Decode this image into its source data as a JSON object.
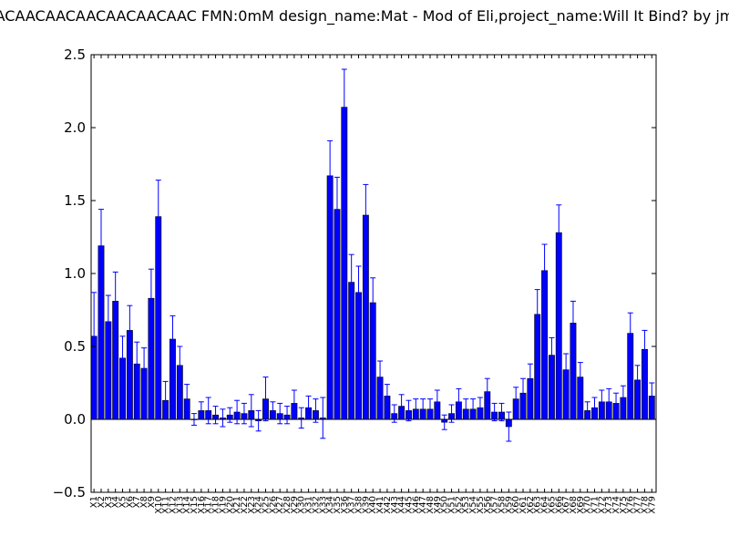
{
  "chart_data": {
    "type": "bar",
    "title": "ACAACAACAACAACAACAAC  FMN:0mM  design_name:Mat - Mod of Eli,project_name:Will It Bind? by jm",
    "xlabel": "",
    "ylabel": "",
    "ylim": [
      -0.5,
      2.5
    ],
    "yticks": [
      "−0.5",
      "0.0",
      "0.5",
      "1.0",
      "1.5",
      "2.0",
      "2.5"
    ],
    "bar_color": "#0000ff",
    "grid": false,
    "legend": "none",
    "categories": [
      "X1",
      "X2",
      "X3",
      "X4",
      "X5",
      "X6",
      "X7",
      "X8",
      "X9",
      "X10",
      "X11",
      "X12",
      "X13",
      "X14",
      "X15",
      "X16",
      "X17",
      "X18",
      "X19",
      "X20",
      "X21",
      "X22",
      "X23",
      "X24",
      "X25",
      "X26",
      "X27",
      "X28",
      "X29",
      "X30",
      "X31",
      "X32",
      "X33",
      "X34",
      "X35",
      "X36",
      "X37",
      "X38",
      "X39",
      "X40",
      "X41",
      "X42",
      "X43",
      "X44",
      "X45",
      "X46",
      "X47",
      "X48",
      "X49",
      "X50",
      "X51",
      "X52",
      "X53",
      "X54",
      "X55",
      "X56",
      "X57",
      "X58",
      "X59",
      "X60",
      "X61",
      "X62",
      "X63",
      "X64",
      "X65",
      "X66",
      "X67",
      "X68",
      "X69",
      "X70",
      "X71",
      "X72",
      "X73",
      "X74",
      "X75",
      "X76",
      "X77",
      "X78",
      "X79"
    ],
    "values": [
      0.57,
      1.19,
      0.67,
      0.81,
      0.42,
      0.61,
      0.38,
      0.35,
      0.83,
      1.39,
      0.13,
      0.55,
      0.37,
      0.14,
      0.0,
      0.06,
      0.06,
      0.03,
      0.01,
      0.03,
      0.05,
      0.04,
      0.06,
      -0.01,
      0.14,
      0.06,
      0.04,
      0.03,
      0.11,
      0.01,
      0.08,
      0.06,
      0.01,
      1.67,
      1.44,
      2.14,
      0.94,
      0.87,
      1.4,
      0.8,
      0.29,
      0.16,
      0.04,
      0.09,
      0.06,
      0.07,
      0.07,
      0.07,
      0.12,
      -0.02,
      0.04,
      0.12,
      0.07,
      0.07,
      0.08,
      0.19,
      0.05,
      0.05,
      -0.05,
      0.14,
      0.18,
      0.28,
      0.72,
      1.02,
      0.44,
      1.28,
      0.34,
      0.66,
      0.29,
      0.06,
      0.08,
      0.12,
      0.12,
      0.11,
      0.15,
      0.59,
      0.27,
      0.48,
      0.16
    ],
    "errors": [
      0.3,
      0.25,
      0.18,
      0.2,
      0.15,
      0.17,
      0.15,
      0.14,
      0.2,
      0.25,
      0.13,
      0.16,
      0.13,
      0.1,
      0.04,
      0.06,
      0.09,
      0.06,
      0.06,
      0.05,
      0.08,
      0.07,
      0.11,
      0.07,
      0.15,
      0.06,
      0.07,
      0.06,
      0.09,
      0.07,
      0.08,
      0.08,
      0.14,
      0.24,
      0.22,
      0.26,
      0.19,
      0.18,
      0.21,
      0.17,
      0.11,
      0.08,
      0.06,
      0.08,
      0.07,
      0.07,
      0.07,
      0.07,
      0.08,
      0.05,
      0.06,
      0.09,
      0.07,
      0.07,
      0.07,
      0.09,
      0.06,
      0.06,
      0.1,
      0.08,
      0.1,
      0.1,
      0.17,
      0.18,
      0.12,
      0.19,
      0.11,
      0.15,
      0.1,
      0.06,
      0.07,
      0.08,
      0.09,
      0.07,
      0.08,
      0.14,
      0.1,
      0.13,
      0.09
    ]
  }
}
